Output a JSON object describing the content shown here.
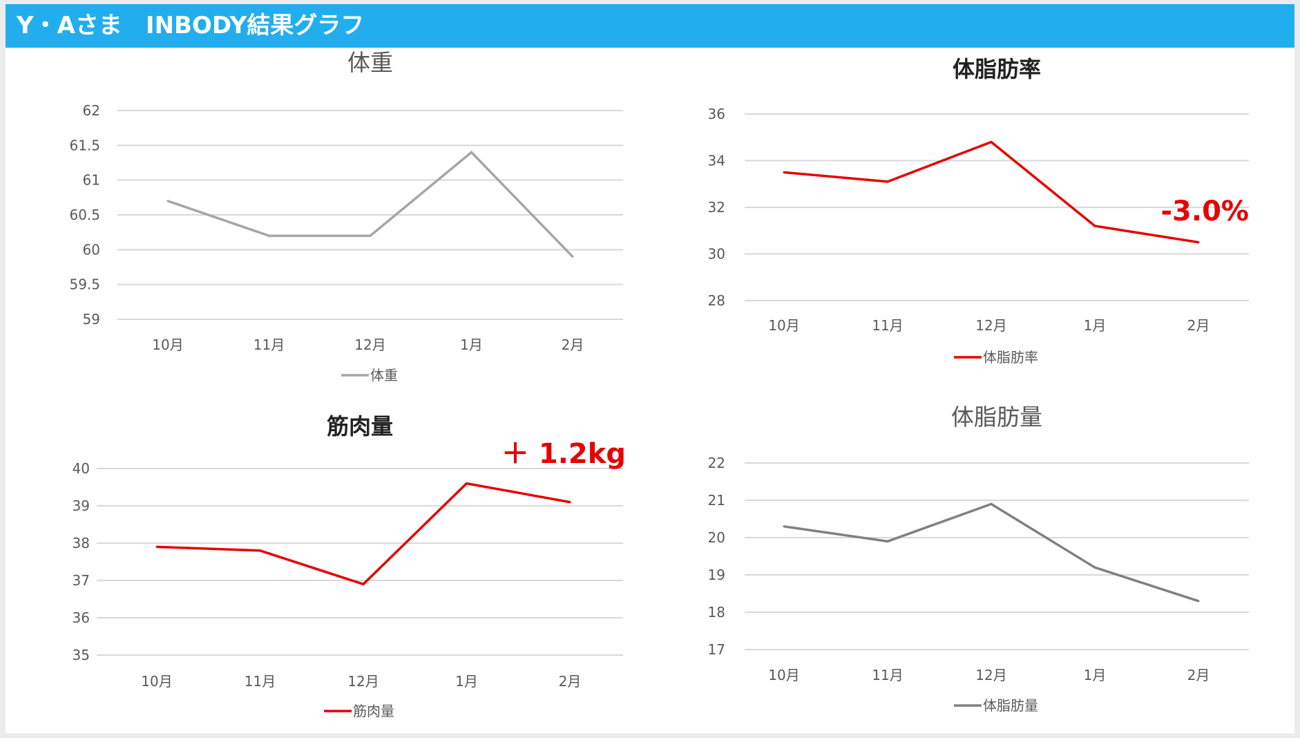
{
  "header": {
    "title": "Y・Aさま　INBODY結果グラフ"
  },
  "chart_data": [
    {
      "id": "weight",
      "type": "line",
      "title": "体重",
      "title_bold": false,
      "categories": [
        "10月",
        "11月",
        "12月",
        "1月",
        "2月"
      ],
      "series": [
        {
          "name": "体重",
          "values": [
            60.7,
            60.2,
            60.2,
            61.4,
            59.9
          ],
          "color": "#a6a6a6"
        }
      ],
      "ylim": [
        59,
        62
      ],
      "yticks": [
        "59",
        "59.5",
        "60",
        "60.5",
        "61",
        "61.5",
        "62"
      ],
      "ytick_values": [
        59,
        59.5,
        60,
        60.5,
        61,
        61.5,
        62
      ],
      "grid": true,
      "legend": "bottom",
      "annotation": ""
    },
    {
      "id": "body-fat-rate",
      "type": "line",
      "title": "体脂肪率",
      "title_bold": true,
      "categories": [
        "10月",
        "11月",
        "12月",
        "1月",
        "2月"
      ],
      "series": [
        {
          "name": "体脂肪率",
          "values": [
            33.5,
            33.1,
            34.8,
            31.2,
            30.5
          ],
          "color": "#e60000"
        }
      ],
      "ylim": [
        28,
        36
      ],
      "yticks": [
        "28",
        "30",
        "32",
        "34",
        "36"
      ],
      "ytick_values": [
        28,
        30,
        32,
        34,
        36
      ],
      "grid": true,
      "legend": "bottom",
      "annotation": "-3.0%"
    },
    {
      "id": "muscle-mass",
      "type": "line",
      "title": "筋肉量",
      "title_bold": true,
      "categories": [
        "10月",
        "11月",
        "12月",
        "1月",
        "2月"
      ],
      "series": [
        {
          "name": "筋肉量",
          "values": [
            37.9,
            37.8,
            36.9,
            39.6,
            39.1
          ],
          "color": "#e60000"
        }
      ],
      "ylim": [
        35,
        40
      ],
      "yticks": [
        "35",
        "36",
        "37",
        "38",
        "39",
        "40"
      ],
      "ytick_values": [
        35,
        36,
        37,
        38,
        39,
        40
      ],
      "grid": true,
      "legend": "bottom",
      "annotation": "＋ 1.2kg"
    },
    {
      "id": "body-fat-mass",
      "type": "line",
      "title": "体脂肪量",
      "title_bold": false,
      "categories": [
        "10月",
        "11月",
        "12月",
        "1月",
        "2月"
      ],
      "series": [
        {
          "name": "体脂肪量",
          "values": [
            20.3,
            19.9,
            20.9,
            19.2,
            18.3
          ],
          "color": "#808080"
        }
      ],
      "ylim": [
        17,
        22
      ],
      "yticks": [
        "17",
        "18",
        "19",
        "20",
        "21",
        "22"
      ],
      "ytick_values": [
        17,
        18,
        19,
        20,
        21,
        22
      ],
      "grid": true,
      "legend": "bottom",
      "annotation": ""
    }
  ]
}
